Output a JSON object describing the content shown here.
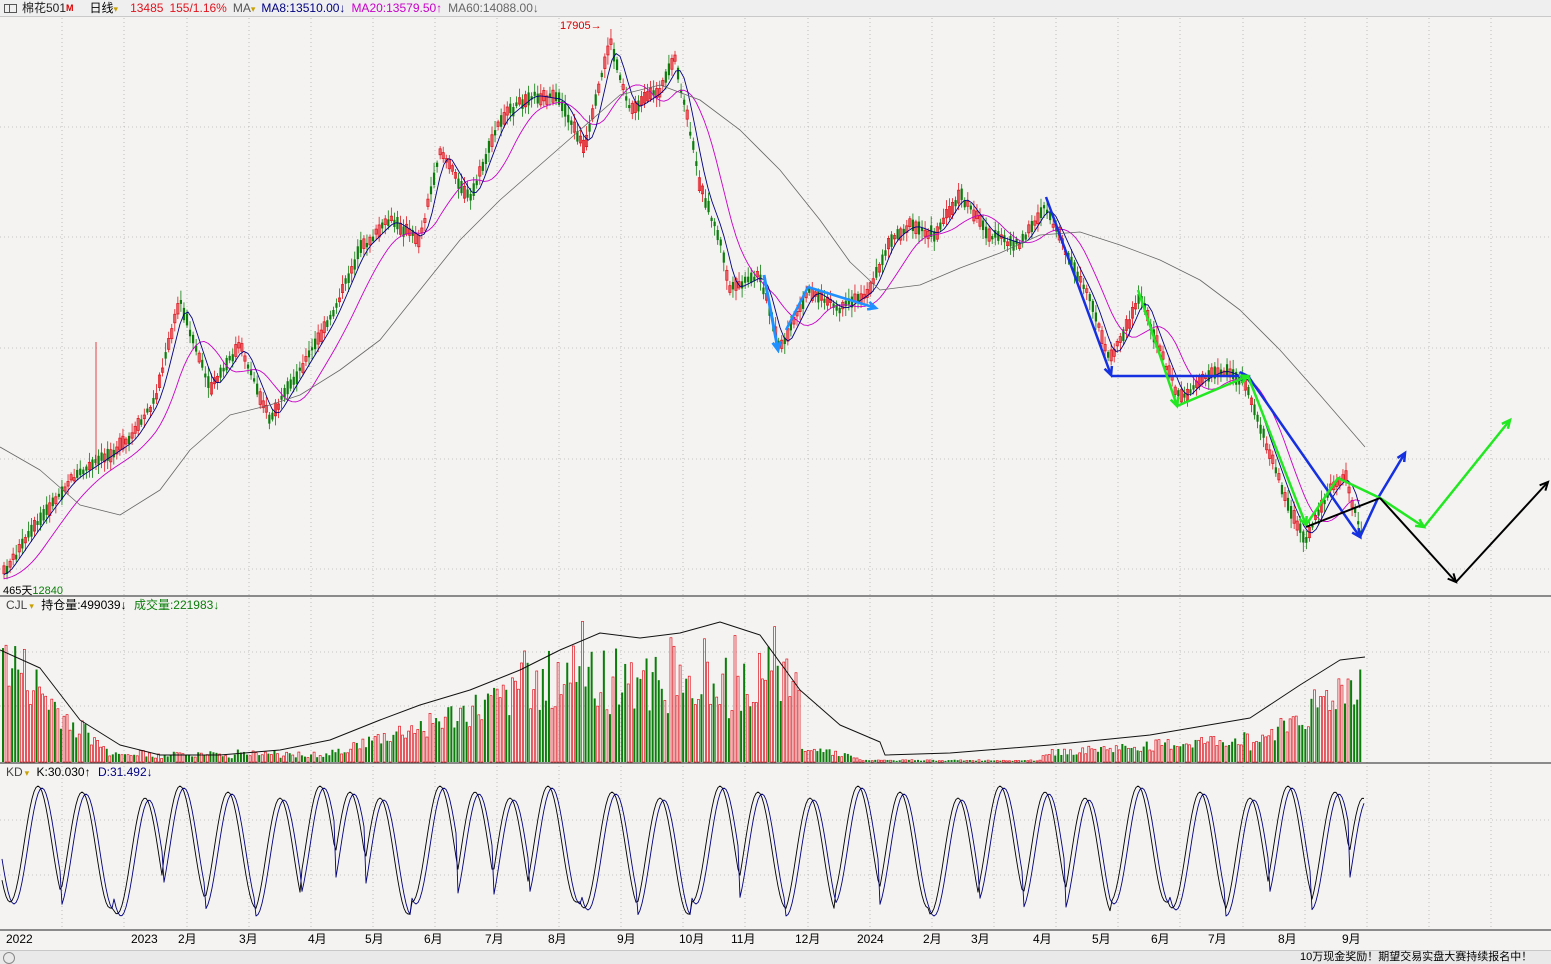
{
  "toolbar": {
    "contract": "棉花501",
    "contract_badge": "M",
    "period": "日线",
    "last_price": "13485",
    "change": "155/1.16%",
    "ma_label": "MA",
    "ma8": "MA8:13510.00↓",
    "ma20": "MA20:13579.50↑",
    "ma60": "MA60:14088.00↓"
  },
  "price_panel": {
    "peak_label": "17905",
    "low_label_days": "465天",
    "low_label_price": "12840"
  },
  "volume_panel": {
    "indicator": "CJL",
    "open_interest": "持仓量:499039↓",
    "volume": "成交量:221983↓"
  },
  "kd_panel": {
    "indicator": "KD",
    "k": "K:30.030↑",
    "d": "D:31.492↓"
  },
  "x_axis": {
    "labels": [
      "2022",
      "2023",
      "2月",
      "3月",
      "4月",
      "5月",
      "6月",
      "7月",
      "8月",
      "9月",
      "10月",
      "11月",
      "12月",
      "2024",
      "2月",
      "3月",
      "4月",
      "5月",
      "6月",
      "7月",
      "8月",
      "9月"
    ]
  },
  "ticker": "10万现金奖励！期望交易实盘大赛持续报名中！",
  "colors": {
    "up": "#e0141e",
    "down": "#0a7d0a",
    "ma8": "#000080",
    "ma20": "#c800c8",
    "ma60": "#666666",
    "blue": "#1530e0",
    "lightblue": "#1e90ff",
    "green": "#22e822",
    "black": "#000000"
  }
}
